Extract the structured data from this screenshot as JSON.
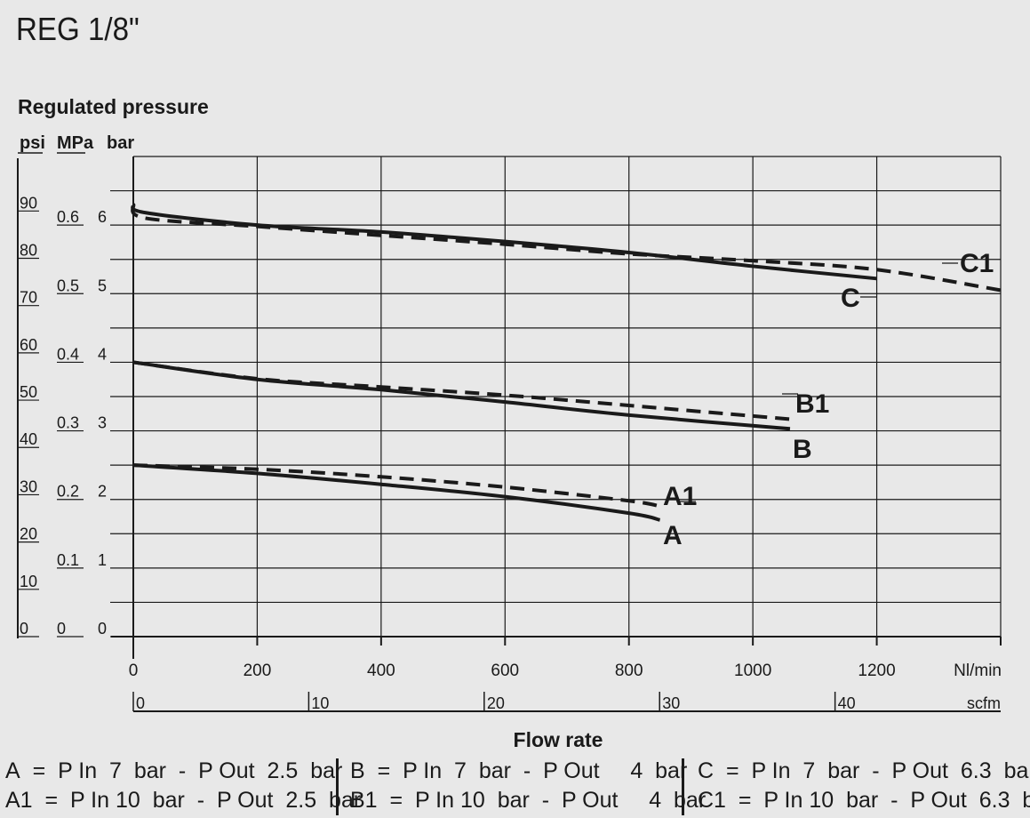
{
  "title": "REG 1/8\"",
  "chart_data": {
    "type": "line",
    "title": "REG 1/8\"",
    "ylabel": "Regulated pressure",
    "xlabel": "Flow rate",
    "y_units": {
      "psi": "psi",
      "mpa": "MPa",
      "bar": "bar"
    },
    "x_units": {
      "primary": "Nl/min",
      "secondary": "scfm"
    },
    "xlim": [
      0,
      1400
    ],
    "ylim_bar": [
      0,
      7
    ],
    "x_ticks": [
      "0",
      "200",
      "400",
      "600",
      "800",
      "1000",
      "1200"
    ],
    "scfm_ticks": [
      "0",
      "10",
      "20",
      "30",
      "40"
    ],
    "psi_ticks": [
      "0",
      "10",
      "20",
      "30",
      "40",
      "50",
      "60",
      "70",
      "80",
      "90"
    ],
    "mpa_ticks": [
      "0",
      "0.1",
      "0.2",
      "0.3",
      "0.4",
      "0.5",
      "0.6"
    ],
    "bar_ticks": [
      "0",
      "1",
      "2",
      "3",
      "4",
      "5",
      "6"
    ],
    "grid": true,
    "series": [
      {
        "name": "A",
        "style": "solid",
        "x": [
          0,
          200,
          400,
          600,
          800,
          850
        ],
        "y": [
          2.5,
          2.38,
          2.22,
          2.04,
          1.8,
          1.7
        ]
      },
      {
        "name": "A1",
        "style": "dashed",
        "x": [
          0,
          200,
          400,
          600,
          800,
          850
        ],
        "y": [
          2.5,
          2.44,
          2.33,
          2.18,
          1.98,
          1.9
        ]
      },
      {
        "name": "B",
        "style": "solid",
        "x": [
          0,
          200,
          400,
          600,
          800,
          1060
        ],
        "y": [
          4.0,
          3.75,
          3.6,
          3.42,
          3.23,
          3.03
        ]
      },
      {
        "name": "B1",
        "style": "dashed",
        "x": [
          0,
          200,
          400,
          600,
          800,
          1060
        ],
        "y": [
          4.0,
          3.76,
          3.64,
          3.52,
          3.37,
          3.17
        ]
      },
      {
        "name": "C",
        "style": "solid",
        "x": [
          0,
          20,
          200,
          400,
          600,
          800,
          1000,
          1200
        ],
        "y": [
          6.3,
          6.18,
          6.0,
          5.9,
          5.76,
          5.6,
          5.4,
          5.22
        ]
      },
      {
        "name": "C1",
        "style": "dashed",
        "x": [
          0,
          20,
          200,
          400,
          600,
          800,
          1000,
          1200,
          1400
        ],
        "y": [
          6.3,
          6.1,
          5.98,
          5.85,
          5.72,
          5.58,
          5.48,
          5.35,
          5.05
        ]
      }
    ]
  },
  "legend": {
    "a": [
      "A",
      "=",
      "P In",
      "7",
      "bar",
      "-",
      "P Out",
      "2.5",
      "bar"
    ],
    "a1": [
      "A1",
      "=",
      "P In",
      "10",
      "bar",
      "-",
      "P Out",
      "2.5",
      "bar"
    ],
    "b": [
      "B",
      "=",
      "P In",
      "7",
      "bar",
      "-",
      "P Out",
      "4",
      "bar"
    ],
    "b1": [
      "B1",
      "=",
      "P In",
      "10",
      "bar",
      "-",
      "P Out",
      "4",
      "bar"
    ],
    "c": [
      "C",
      "=",
      "P In",
      "7",
      "bar",
      "-",
      "P Out",
      "6.3",
      "bar"
    ],
    "c1": [
      "C1",
      "=",
      "P In",
      "10",
      "bar",
      "-",
      "P Out",
      "6.3",
      "bar"
    ]
  }
}
